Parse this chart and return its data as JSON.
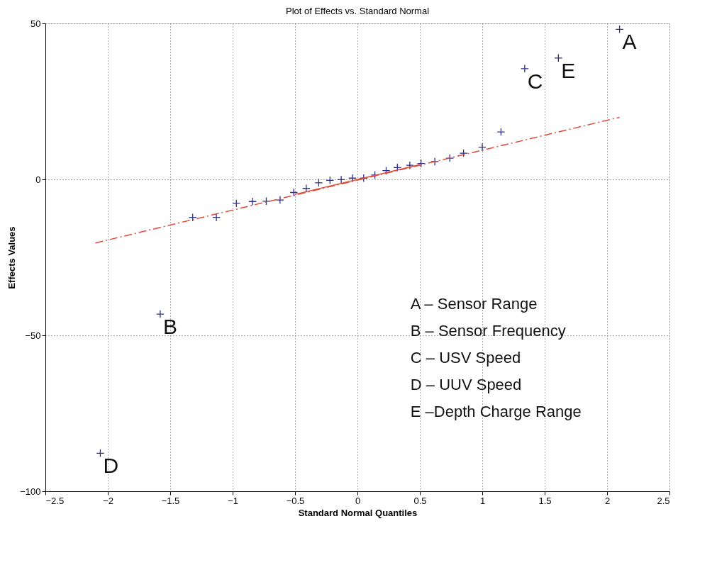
{
  "chart_data": {
    "type": "scatter",
    "title": "Plot of Effects vs. Standard Normal",
    "xlabel": "Standard Normal Quantiles",
    "ylabel": "Effects Values",
    "xlim": [
      -2.5,
      2.5
    ],
    "ylim": [
      -100,
      50
    ],
    "xticks": [
      -2.5,
      -2,
      -1.5,
      -1,
      -0.5,
      0,
      0.5,
      1,
      1.5,
      2,
      2.5
    ],
    "yticks": [
      -100,
      -50,
      0,
      50
    ],
    "grid": true,
    "series": [
      {
        "type": "scatter",
        "marker": "cross",
        "color": "#2e2e8f",
        "x": [
          -2.06,
          -1.58,
          -1.32,
          -1.13,
          -0.97,
          -0.84,
          -0.73,
          -0.62,
          -0.51,
          -0.41,
          -0.31,
          -0.22,
          -0.13,
          -0.04,
          0.05,
          0.14,
          0.23,
          0.32,
          0.42,
          0.51,
          0.62,
          0.74,
          0.85,
          1.0,
          1.15,
          1.34,
          1.61,
          2.1
        ],
        "values": [
          -87.8,
          -43.2,
          -12.2,
          -12.2,
          -7.7,
          -7.1,
          -7.0,
          -6.6,
          -4.2,
          -2.9,
          -1.1,
          -0.3,
          -0.1,
          0.4,
          0.4,
          1.4,
          2.8,
          3.8,
          4.5,
          5.1,
          5.7,
          6.8,
          8.4,
          10.3,
          15.2,
          35.5,
          38.9,
          48.1
        ]
      },
      {
        "type": "line",
        "color": "#e04a3a",
        "line_style": "dashed",
        "x": [
          -2.1,
          2.1
        ],
        "values": [
          -20.4,
          19.9
        ]
      },
      {
        "type": "line",
        "color": "#e04a3a",
        "line_style": "solid",
        "x": [
          -0.5,
          0.5
        ],
        "values": [
          -4.8,
          4.7
        ]
      }
    ],
    "annotations": [
      {
        "text": "A",
        "x": 2.1,
        "y": 48.1
      },
      {
        "text": "B",
        "x": -1.58,
        "y": -43.2
      },
      {
        "text": "C",
        "x": 1.34,
        "y": 35.5
      },
      {
        "text": "D",
        "x": -2.06,
        "y": -87.8
      },
      {
        "text": "E",
        "x": 1.61,
        "y": 38.9
      },
      "A – Sensor Range",
      "B – Sensor Frequency",
      "C – USV Speed",
      "D – UUV Speed",
      "E –Depth Charge Range"
    ]
  }
}
